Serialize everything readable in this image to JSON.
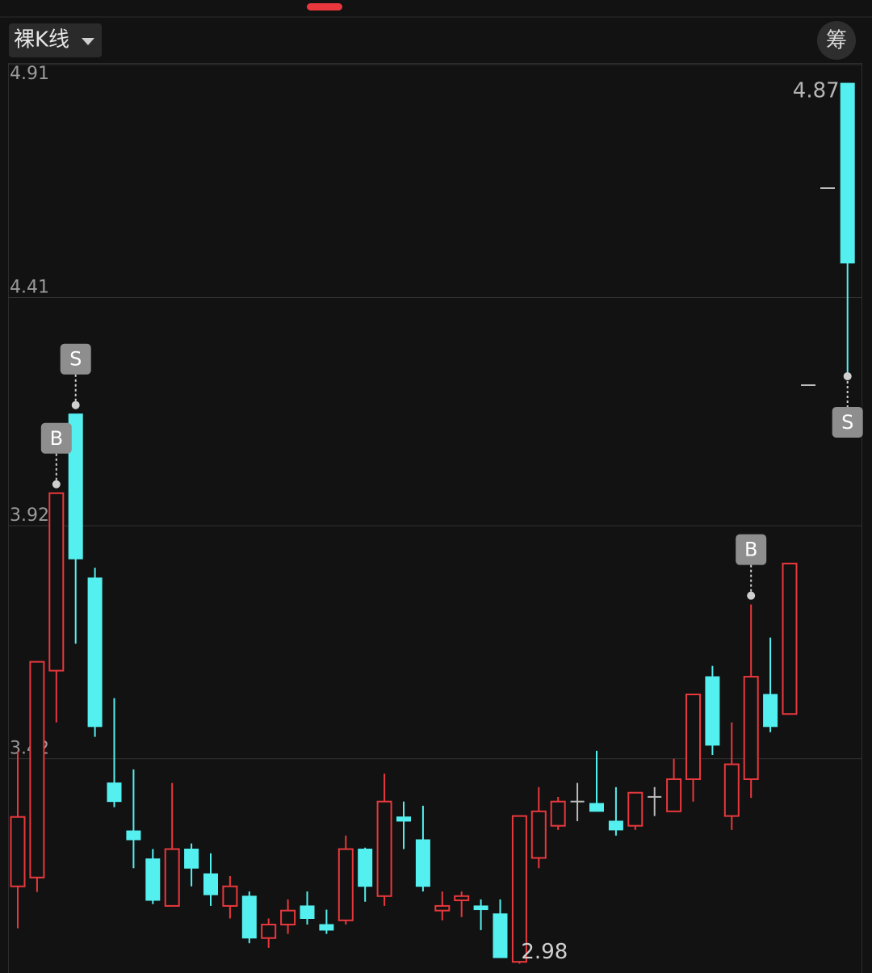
{
  "header": {
    "mode": "裸K线",
    "chip_button": "筹"
  },
  "chart_data": {
    "type": "candlestick",
    "ylim": [
      2.96,
      4.91
    ],
    "yticks": [
      4.91,
      4.41,
      3.92,
      3.42
    ],
    "grid": true,
    "up_color": "#e8383d",
    "down_color": "#54f0f0",
    "flat_color": "#bbbbbb",
    "open": [
      3.146,
      3.165,
      3.609,
      4.16,
      3.808,
      3.368,
      3.265,
      3.205,
      3.104,
      3.226,
      3.173,
      3.104,
      3.125,
      3.035,
      3.064,
      3.104,
      3.064,
      3.073,
      3.226,
      3.125,
      3.295,
      3.246,
      3.094,
      3.116,
      3.104,
      3.087,
      2.984,
      3.207,
      3.276,
      3.328,
      3.324,
      3.286,
      3.276,
      3.338,
      3.307,
      3.376,
      3.596,
      3.297,
      3.376,
      3.558,
      3.516,
      null,
      null,
      4.87
    ],
    "high": [
      3.437,
      3.628,
      3.99,
      4.16,
      3.83,
      3.55,
      3.397,
      3.226,
      3.368,
      3.238,
      3.217,
      3.168,
      3.135,
      3.077,
      3.118,
      3.135,
      3.096,
      3.255,
      3.229,
      3.388,
      3.328,
      3.319,
      3.135,
      3.135,
      3.118,
      3.118,
      3.297,
      3.359,
      3.338,
      3.368,
      3.437,
      3.359,
      3.347,
      3.359,
      3.42,
      3.558,
      3.619,
      3.498,
      3.751,
      3.68,
      3.839,
      null,
      null,
      4.87
    ],
    "low": [
      3.056,
      3.134,
      3.498,
      3.667,
      3.467,
      3.316,
      3.185,
      3.108,
      3.104,
      3.146,
      3.104,
      3.077,
      3.024,
      3.014,
      3.044,
      3.064,
      3.044,
      3.064,
      3.113,
      3.104,
      3.226,
      3.135,
      3.073,
      3.08,
      3.052,
      2.993,
      2.98,
      3.185,
      3.267,
      3.286,
      3.307,
      3.255,
      3.267,
      3.297,
      3.307,
      3.328,
      3.428,
      3.267,
      3.336,
      3.477,
      3.516,
      null,
      null,
      4.241
    ],
    "close": [
      3.295,
      3.628,
      3.99,
      3.849,
      3.489,
      3.328,
      3.246,
      3.116,
      3.226,
      3.185,
      3.128,
      3.146,
      3.035,
      3.064,
      3.094,
      3.077,
      3.052,
      3.226,
      3.146,
      3.328,
      3.286,
      3.146,
      3.104,
      3.125,
      3.096,
      2.993,
      3.297,
      3.307,
      3.328,
      3.328,
      3.307,
      3.267,
      3.347,
      3.338,
      3.376,
      3.558,
      3.449,
      3.408,
      3.596,
      3.489,
      3.839,
      null,
      null,
      4.484
    ],
    "markers": [
      {
        "index": 2,
        "side": "high",
        "label": "B"
      },
      {
        "index": 3,
        "side": "high",
        "label": "S"
      },
      {
        "index": 38,
        "side": "high",
        "label": "B"
      },
      {
        "index": 43,
        "side": "low",
        "label": "S"
      }
    ],
    "annotations": [
      {
        "value": 4.87,
        "text": "4.87"
      },
      {
        "value": 2.98,
        "text": "2.98"
      }
    ]
  }
}
